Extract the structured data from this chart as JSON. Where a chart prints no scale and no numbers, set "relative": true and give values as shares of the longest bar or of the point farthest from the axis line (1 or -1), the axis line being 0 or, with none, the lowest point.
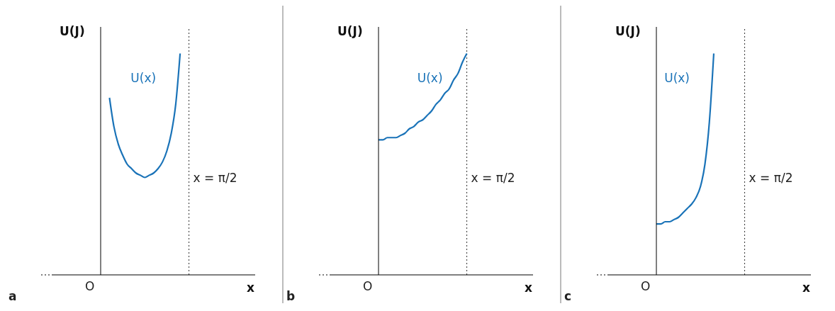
{
  "chart_data": [
    {
      "type": "line",
      "relative": true,
      "xlabel": "x",
      "ylabel": "U(J)",
      "categories": [
        null,
        null,
        null,
        null,
        null,
        null,
        null,
        null,
        null,
        null,
        null,
        null,
        null,
        null,
        null,
        null,
        null,
        null,
        null,
        null,
        null,
        null,
        null,
        null,
        null,
        null,
        null,
        null,
        null,
        null,
        null,
        null,
        null,
        null,
        null,
        null
      ],
      "series": [
        {
          "name": "U(x)",
          "color": "#1a73b8",
          "values": [
            null,
            null,
            0.8,
            0.67,
            0.59,
            0.54,
            0.5,
            0.48,
            0.46,
            0.45,
            0.44,
            0.45,
            0.46,
            0.48,
            0.51,
            0.56,
            0.64,
            0.77,
            1.0,
            null,
            null,
            null,
            null,
            null,
            null,
            null,
            null,
            null,
            null,
            null,
            null,
            null,
            null,
            null,
            null,
            null
          ]
        }
      ],
      "annotations": [
        "x = π/2",
        "O",
        "a"
      ],
      "legend": false,
      "grid": false
    },
    {
      "type": "line",
      "relative": true,
      "xlabel": "x",
      "ylabel": "U(J)",
      "categories": [
        null,
        null,
        null,
        null,
        null,
        null,
        null,
        null,
        null,
        null,
        null,
        null,
        null,
        null,
        null,
        null,
        null,
        null,
        null,
        null,
        null,
        null,
        null,
        null,
        null,
        null,
        null,
        null,
        null,
        null,
        null,
        null,
        null,
        null,
        null,
        null
      ],
      "series": [
        {
          "name": "U(x)",
          "color": "#1a73b8",
          "values": [
            0.61,
            0.61,
            0.62,
            0.62,
            0.62,
            0.63,
            0.64,
            0.66,
            0.67,
            0.69,
            0.7,
            0.72,
            0.74,
            0.77,
            0.79,
            0.82,
            0.84,
            0.88,
            0.91,
            0.96,
            1.0,
            null,
            null,
            null,
            null,
            null,
            null,
            null,
            null,
            null,
            null,
            null,
            null,
            null,
            null,
            null
          ]
        }
      ],
      "annotations": [
        "x = π/2",
        "O",
        "b"
      ],
      "legend": false,
      "grid": false
    },
    {
      "type": "line",
      "relative": true,
      "xlabel": "x",
      "ylabel": "U(J)",
      "categories": [
        null,
        null,
        null,
        null,
        null,
        null,
        null,
        null,
        null,
        null,
        null,
        null,
        null,
        null,
        null,
        null,
        null,
        null,
        null,
        null,
        null,
        null,
        null,
        null,
        null,
        null,
        null,
        null,
        null,
        null,
        null,
        null,
        null,
        null,
        null,
        null
      ],
      "series": [
        {
          "name": "U(x)",
          "color": "#1a73b8",
          "values": [
            0.23,
            0.23,
            0.24,
            0.24,
            0.25,
            0.26,
            0.28,
            0.3,
            0.32,
            0.35,
            0.4,
            0.5,
            0.69,
            1.0,
            null,
            null,
            null,
            null,
            null,
            null,
            null,
            null,
            null,
            null,
            null,
            null,
            null,
            null,
            null,
            null,
            null,
            null,
            null,
            null,
            null,
            null
          ]
        }
      ],
      "annotations": [
        "x = π/2",
        "O",
        "c"
      ],
      "legend": false,
      "grid": false
    }
  ]
}
